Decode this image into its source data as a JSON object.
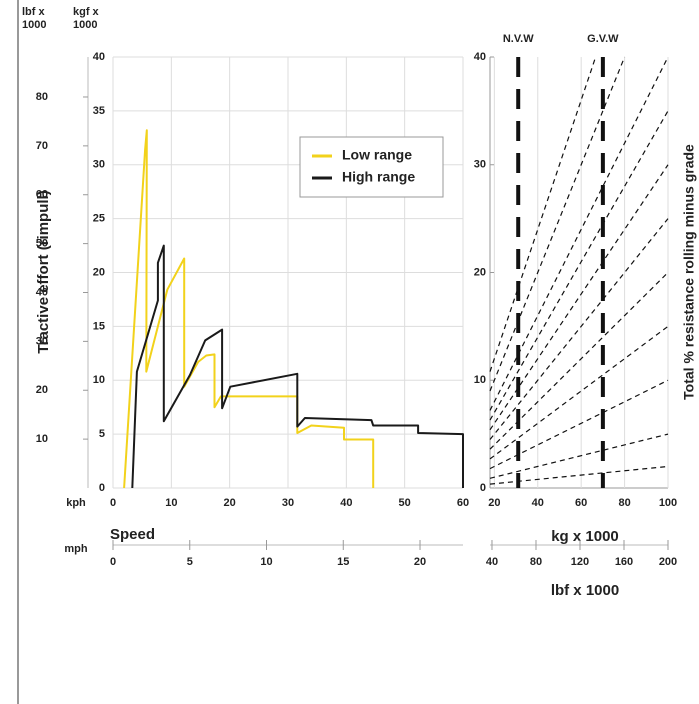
{
  "chart_data": [
    {
      "type": "line",
      "y_label": "Tractive effort (rimpull)",
      "y_unit": "kgf x 1000",
      "y2_unit": "lbf x 1000",
      "x_label": "Speed",
      "x_unit": "kph",
      "x2_unit": "mph",
      "xlim": [
        0,
        60
      ],
      "xticks": [
        0,
        10,
        20,
        30,
        40,
        50,
        60
      ],
      "x2lim": [
        0,
        22.8
      ],
      "x2ticks": [
        0,
        5,
        10,
        15,
        20
      ],
      "ylim": [
        0,
        40
      ],
      "yticks": [
        0,
        5,
        10,
        15,
        20,
        25,
        30,
        35,
        40
      ],
      "y2lim": [
        0,
        88.18
      ],
      "y2ticks": [
        10,
        20,
        30,
        40,
        50,
        60,
        70,
        80
      ],
      "grid": true,
      "legend": "top-right",
      "series": [
        {
          "name": "Low range",
          "color": "#f2d21b",
          "x": [
            1.9,
            5.5,
            5.8,
            5.7,
            9.3,
            12.2,
            12.2,
            14.6,
            16.0,
            17.4,
            17.4,
            18.5,
            31.6,
            31.6,
            34.0,
            39.6,
            39.6,
            44.6,
            44.6
          ],
          "values": [
            0,
            31.4,
            33.2,
            10.8,
            18.4,
            21.3,
            9.4,
            11.7,
            12.3,
            12.4,
            7.5,
            8.5,
            8.5,
            5.1,
            5.8,
            5.6,
            4.5,
            4.5,
            0
          ]
        },
        {
          "name": "High range",
          "color": "#1a1a1a",
          "x": [
            3.3,
            4.1,
            7.7,
            7.7,
            8.7,
            8.7,
            13.2,
            15.8,
            18.7,
            18.7,
            20.1,
            31.6,
            31.6,
            32.9,
            44.3,
            44.6,
            52.3,
            52.3,
            60.0,
            60.0
          ],
          "values": [
            0,
            10.8,
            17.4,
            20.9,
            22.5,
            6.2,
            10.5,
            13.7,
            14.7,
            7.4,
            9.4,
            10.6,
            5.7,
            6.5,
            6.3,
            5.8,
            5.8,
            5.1,
            5.0,
            0
          ]
        }
      ]
    },
    {
      "type": "grade_lines",
      "y_label": "Total % resistance rolling minus grade",
      "x_label": "kg x 1000",
      "x2_label": "lbf x 1000",
      "xlim": [
        18,
        100
      ],
      "xticks": [
        20,
        40,
        60,
        80,
        100
      ],
      "x2lim": [
        38.2,
        200
      ],
      "x2ticks": [
        40,
        80,
        120,
        160,
        200
      ],
      "ylim": [
        0,
        40
      ],
      "yticks": [
        0,
        10,
        20,
        30,
        40
      ],
      "grid": true,
      "grades": [
        60,
        50,
        40,
        35,
        30,
        25,
        20,
        15,
        10,
        5,
        2
      ],
      "weight_markers": [
        {
          "label": "N.V.W",
          "value": 31
        },
        {
          "label": "G.V.W",
          "value": 70
        }
      ]
    }
  ]
}
